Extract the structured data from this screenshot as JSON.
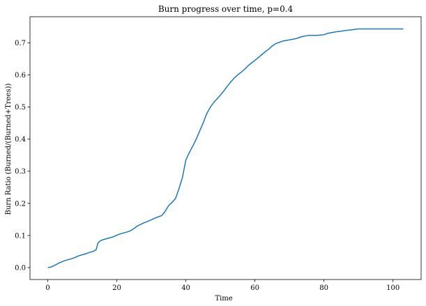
{
  "chart_data": {
    "type": "line",
    "title": "Burn progress over time, p=0.4",
    "xlabel": "Time",
    "ylabel": "Burn Ratio (Burned/(Burned+Trees))",
    "xlim": [
      -5.15,
      108.15
    ],
    "ylim": [
      -0.037,
      0.781
    ],
    "xticks": [
      0,
      20,
      40,
      60,
      80,
      100
    ],
    "yticks": [
      0.0,
      0.1,
      0.2,
      0.3,
      0.4,
      0.5,
      0.6,
      0.7
    ],
    "grid": false,
    "series": [
      {
        "color": "#1f77b4",
        "points": [
          [
            0,
            0.0
          ],
          [
            1,
            0.002
          ],
          [
            2,
            0.007
          ],
          [
            3,
            0.013
          ],
          [
            4,
            0.018
          ],
          [
            5,
            0.022
          ],
          [
            6,
            0.025
          ],
          [
            7,
            0.028
          ],
          [
            8,
            0.032
          ],
          [
            9,
            0.037
          ],
          [
            10,
            0.04
          ],
          [
            11,
            0.043
          ],
          [
            12,
            0.047
          ],
          [
            13,
            0.05
          ],
          [
            14,
            0.055
          ],
          [
            14.5,
            0.075
          ],
          [
            15,
            0.082
          ],
          [
            16,
            0.087
          ],
          [
            17,
            0.09
          ],
          [
            18,
            0.093
          ],
          [
            19,
            0.096
          ],
          [
            20,
            0.101
          ],
          [
            21,
            0.105
          ],
          [
            22,
            0.108
          ],
          [
            23,
            0.111
          ],
          [
            24,
            0.115
          ],
          [
            25,
            0.122
          ],
          [
            26,
            0.13
          ],
          [
            27,
            0.135
          ],
          [
            28,
            0.14
          ],
          [
            29,
            0.144
          ],
          [
            30,
            0.149
          ],
          [
            31,
            0.154
          ],
          [
            32,
            0.158
          ],
          [
            33,
            0.162
          ],
          [
            34,
            0.175
          ],
          [
            35,
            0.193
          ],
          [
            36,
            0.203
          ],
          [
            37,
            0.215
          ],
          [
            38,
            0.245
          ],
          [
            39,
            0.28
          ],
          [
            40,
            0.335
          ],
          [
            41,
            0.358
          ],
          [
            42,
            0.378
          ],
          [
            43,
            0.4
          ],
          [
            44,
            0.425
          ],
          [
            45,
            0.45
          ],
          [
            46,
            0.478
          ],
          [
            47,
            0.498
          ],
          [
            48,
            0.513
          ],
          [
            49,
            0.525
          ],
          [
            50,
            0.537
          ],
          [
            51,
            0.55
          ],
          [
            52,
            0.565
          ],
          [
            53,
            0.578
          ],
          [
            54,
            0.59
          ],
          [
            55,
            0.6
          ],
          [
            56,
            0.608
          ],
          [
            57,
            0.617
          ],
          [
            58,
            0.628
          ],
          [
            59,
            0.637
          ],
          [
            60,
            0.645
          ],
          [
            61,
            0.654
          ],
          [
            62,
            0.663
          ],
          [
            63,
            0.672
          ],
          [
            64,
            0.68
          ],
          [
            65,
            0.69
          ],
          [
            66,
            0.697
          ],
          [
            67,
            0.701
          ],
          [
            68,
            0.705
          ],
          [
            69,
            0.707
          ],
          [
            70,
            0.709
          ],
          [
            71,
            0.711
          ],
          [
            72,
            0.713
          ],
          [
            73,
            0.717
          ],
          [
            74,
            0.72
          ],
          [
            75,
            0.722
          ],
          [
            76,
            0.723
          ],
          [
            78,
            0.723
          ],
          [
            79,
            0.724
          ],
          [
            80,
            0.725
          ],
          [
            81,
            0.729
          ],
          [
            82,
            0.731
          ],
          [
            83,
            0.733
          ],
          [
            84,
            0.735
          ],
          [
            85,
            0.736
          ],
          [
            86,
            0.738
          ],
          [
            88,
            0.74
          ],
          [
            89,
            0.742
          ],
          [
            90,
            0.743
          ],
          [
            92,
            0.743
          ],
          [
            95,
            0.743
          ],
          [
            100,
            0.743
          ],
          [
            103,
            0.743
          ]
        ]
      }
    ]
  }
}
